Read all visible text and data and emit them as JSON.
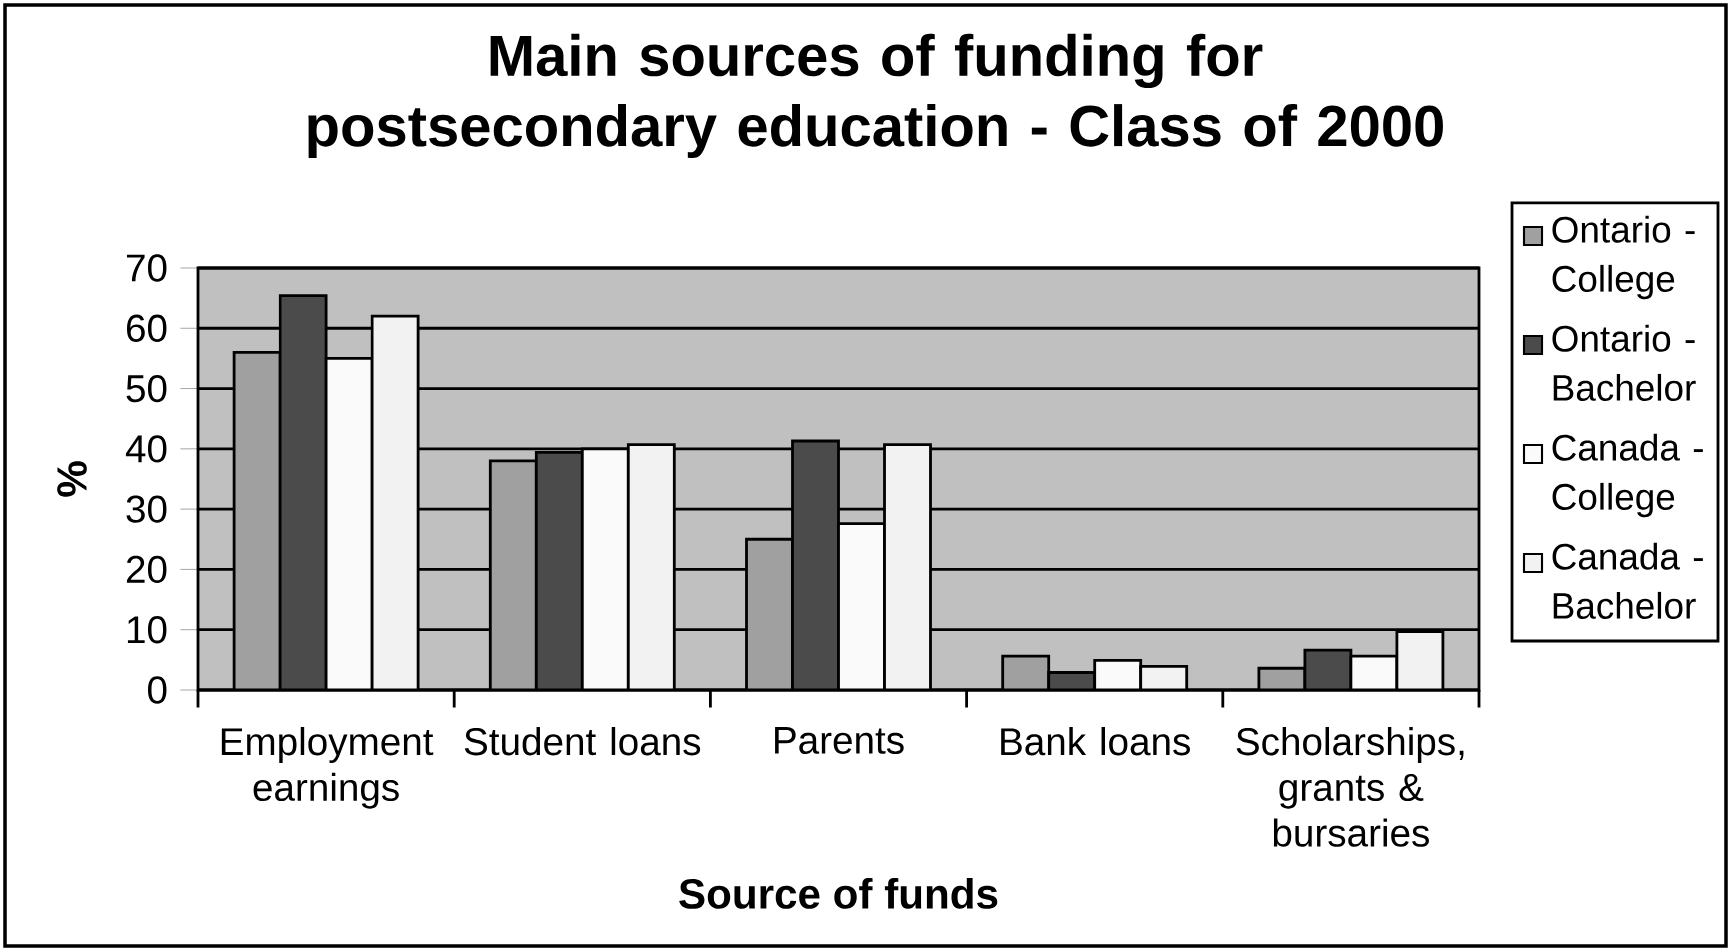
{
  "chart_data": {
    "type": "bar",
    "title": "Main sources of funding for postsecondary education - Class of 2000",
    "xlabel": "Source of funds",
    "ylabel": "%",
    "categories": [
      "Employment earnings",
      "Student loans",
      "Parents",
      "Bank loans",
      "Scholarships, grants & bursaries"
    ],
    "series": [
      {
        "name": "Ontario - College",
        "color": "#a0a0a0",
        "values": [
          56,
          38,
          25,
          5.6,
          3.6
        ]
      },
      {
        "name": "Ontario - Bachelor",
        "color": "#4b4b4b",
        "values": [
          65.4,
          39.4,
          41.3,
          2.9,
          6.6
        ]
      },
      {
        "name": "Canada - College",
        "color": "#fafafa",
        "values": [
          55,
          40,
          27.6,
          4.9,
          5.6
        ]
      },
      {
        "name": "Canada - Bachelor",
        "color": "#f2f2f2",
        "values": [
          62,
          40.7,
          40.7,
          3.9,
          9.7
        ]
      }
    ],
    "ylim": [
      0,
      70
    ],
    "yticks": [
      0,
      10,
      20,
      30,
      40,
      50,
      60,
      70
    ],
    "grid": "y",
    "legend": "right"
  }
}
